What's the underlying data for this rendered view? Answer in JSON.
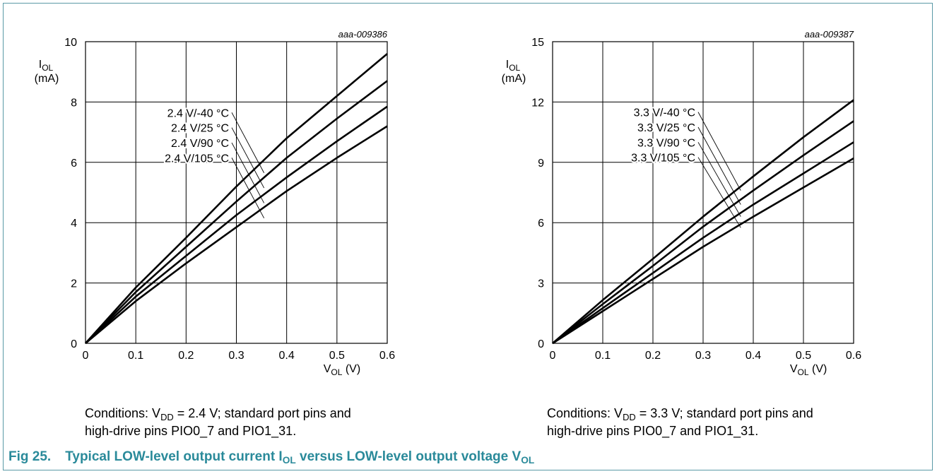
{
  "figure": {
    "number": "Fig 25.",
    "title_a": "Typical LOW-level output current I",
    "title_sub_a": "OL",
    "title_b": " versus LOW-level output voltage V",
    "title_sub_b": "OL",
    "accent_color": "#2a8a9a",
    "frame_color": "#5a9aa6"
  },
  "panels": [
    {
      "conditions": {
        "prefix": "Conditions: V",
        "sub": "DD",
        "suffix": " = 2.4 V; standard port pins and",
        "line2": "high-drive pins PIO0_7 and PIO1_31."
      }
    },
    {
      "conditions": {
        "prefix": "Conditions: V",
        "sub": "DD",
        "suffix": " = 3.3 V; standard port pins and",
        "line2": "high-drive pins PIO0_7 and PIO1_31."
      }
    }
  ],
  "chart_data": [
    {
      "type": "line",
      "id_label": "aaa-009386",
      "ylabel": "I",
      "ylabel_sub": "OL",
      "yunit": "(mA)",
      "xlabel": "V",
      "xlabel_sub": "OL",
      "xunit": " (V)",
      "xlim": [
        0,
        0.6
      ],
      "ylim": [
        0,
        10
      ],
      "xticks": [
        0,
        0.1,
        0.2,
        0.3,
        0.4,
        0.5,
        0.6
      ],
      "xtick_labels": [
        "0",
        "0.1",
        "0.2",
        "0.3",
        "0.4",
        "0.5",
        "0.6"
      ],
      "yticks": [
        0,
        2,
        4,
        6,
        8,
        10
      ],
      "ytick_labels": [
        "0",
        "2",
        "4",
        "6",
        "8",
        "10"
      ],
      "grid": true,
      "series": [
        {
          "name": "2.4 V/-40 °C",
          "x": [
            0,
            0.1,
            0.2,
            0.3,
            0.4,
            0.5,
            0.6
          ],
          "y": [
            0,
            1.85,
            3.5,
            5.2,
            6.8,
            8.2,
            9.6
          ]
        },
        {
          "name": "2.4 V/25 °C",
          "x": [
            0,
            0.1,
            0.2,
            0.3,
            0.4,
            0.5,
            0.6
          ],
          "y": [
            0,
            1.7,
            3.2,
            4.7,
            6.15,
            7.45,
            8.7
          ]
        },
        {
          "name": "2.4 V/90 °C",
          "x": [
            0,
            0.1,
            0.2,
            0.3,
            0.4,
            0.5,
            0.6
          ],
          "y": [
            0,
            1.55,
            2.9,
            4.25,
            5.5,
            6.7,
            7.85
          ]
        },
        {
          "name": "2.4 V/105 °C",
          "x": [
            0,
            0.1,
            0.2,
            0.3,
            0.4,
            0.5,
            0.6
          ],
          "y": [
            0,
            1.4,
            2.65,
            3.85,
            5.05,
            6.15,
            7.2
          ]
        }
      ],
      "annotations": [
        {
          "text": "2.4 V/-40 °C",
          "label_y": 7.65,
          "target_x": 0.355,
          "target_y": 5.65
        },
        {
          "text": "2.4 V/25 °C",
          "label_y": 7.15,
          "target_x": 0.355,
          "target_y": 5.15
        },
        {
          "text": "2.4 V/90 °C",
          "label_y": 6.65,
          "target_x": 0.355,
          "target_y": 4.65
        },
        {
          "text": "2.4 V/105 °C",
          "label_y": 6.15,
          "target_x": 0.355,
          "target_y": 4.15
        }
      ]
    },
    {
      "type": "line",
      "id_label": "aaa-009387",
      "ylabel": "I",
      "ylabel_sub": "OL",
      "yunit": "(mA)",
      "xlabel": "V",
      "xlabel_sub": "OL",
      "xunit": " (V)",
      "xlim": [
        0,
        0.6
      ],
      "ylim": [
        0,
        15
      ],
      "xticks": [
        0,
        0.1,
        0.2,
        0.3,
        0.4,
        0.5,
        0.6
      ],
      "xtick_labels": [
        "0",
        "0.1",
        "0.2",
        "0.3",
        "0.4",
        "0.5",
        "0.6"
      ],
      "yticks": [
        0,
        3,
        6,
        9,
        12,
        15
      ],
      "ytick_labels": [
        "0",
        "3",
        "6",
        "9",
        "12",
        "15"
      ],
      "grid": true,
      "series": [
        {
          "name": "3.3 V/-40 °C",
          "x": [
            0,
            0.1,
            0.2,
            0.3,
            0.4,
            0.5,
            0.6
          ],
          "y": [
            0,
            2.15,
            4.2,
            6.3,
            8.3,
            10.25,
            12.1
          ]
        },
        {
          "name": "3.3 V/25 °C",
          "x": [
            0,
            0.1,
            0.2,
            0.3,
            0.4,
            0.5,
            0.6
          ],
          "y": [
            0,
            1.95,
            3.85,
            5.8,
            7.6,
            9.35,
            11.05
          ]
        },
        {
          "name": "3.3 V/90 °C",
          "x": [
            0,
            0.1,
            0.2,
            0.3,
            0.4,
            0.5,
            0.6
          ],
          "y": [
            0,
            1.75,
            3.5,
            5.25,
            6.9,
            8.45,
            10.0
          ]
        },
        {
          "name": "3.3 V/105 °C",
          "x": [
            0,
            0.1,
            0.2,
            0.3,
            0.4,
            0.5,
            0.6
          ],
          "y": [
            0,
            1.6,
            3.2,
            4.8,
            6.3,
            7.75,
            9.2
          ]
        }
      ],
      "annotations": [
        {
          "text": "3.3 V/-40 °C",
          "label_y": 11.5,
          "target_x": 0.375,
          "target_y": 7.6
        },
        {
          "text": "3.3 V/25 °C",
          "label_y": 10.75,
          "target_x": 0.375,
          "target_y": 6.9
        },
        {
          "text": "3.3 V/90 °C",
          "label_y": 10.0,
          "target_x": 0.375,
          "target_y": 6.3
        },
        {
          "text": "3.3 V/105 °C",
          "label_y": 9.25,
          "target_x": 0.375,
          "target_y": 5.75
        }
      ]
    }
  ]
}
